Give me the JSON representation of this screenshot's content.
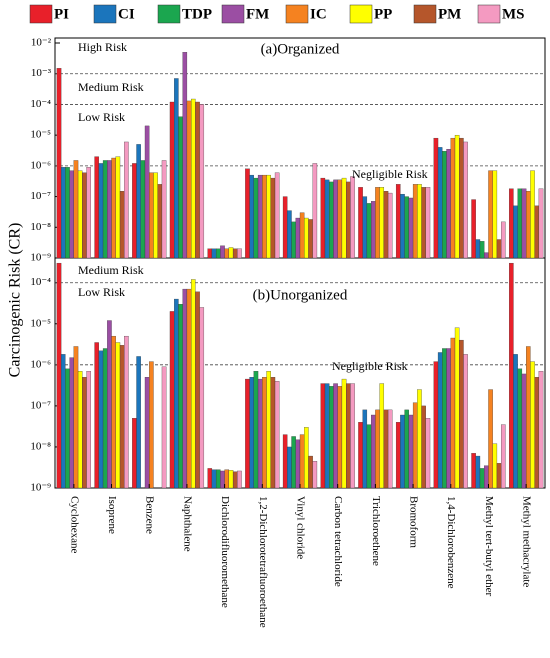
{
  "chart_data": [
    {
      "type": "bar",
      "title": "(a)Organized",
      "y_label": "Carcinogenic Risk (CR)",
      "log_scale": true,
      "categories": [
        "Cyclohexane",
        "Isoprene",
        "Benzene",
        "Naphthalene",
        "Dichlorodifluoromethane",
        "1,2-Dichlorotetrafluoroethane",
        "Vinyl chloride",
        "Carbon tetrachloride",
        "Trichloroethene",
        "Bromoform",
        "1,4-Dichlorobenzene",
        "Methyl tert-butyl ether",
        "Methyl methacrylate"
      ],
      "ylim": [
        1e-09,
        0.01
      ],
      "yticks": [
        {
          "value": 1e-09,
          "label": "10⁻⁹"
        },
        {
          "value": 1e-08,
          "label": "10⁻⁸"
        },
        {
          "value": 1e-07,
          "label": "10⁻⁷"
        },
        {
          "value": 1e-06,
          "label": "10⁻⁶"
        },
        {
          "value": 1e-05,
          "label": "10⁻⁵"
        },
        {
          "value": 0.0001,
          "label": "10⁻⁴"
        },
        {
          "value": 0.001,
          "label": "10⁻³"
        },
        {
          "value": 0.01,
          "label": "10⁻²"
        }
      ],
      "risk_lines": [
        0.001,
        0.0001,
        1e-06
      ],
      "annotations": [
        "High Risk",
        "Medium Risk",
        "Low Risk",
        "Negligible Risk"
      ],
      "series": [
        {
          "name": "PI",
          "color": "#e8202a",
          "values": [
            0.0015,
            2e-06,
            1.2e-06,
            0.00012,
            2e-09,
            8e-07,
            1e-07,
            4e-07,
            2e-07,
            2.5e-07,
            8e-06,
            8e-08,
            1.8e-07
          ]
        },
        {
          "name": "CI",
          "color": "#1b75bc",
          "values": [
            9e-07,
            1.2e-06,
            5e-06,
            0.0007,
            2e-09,
            5e-07,
            3.5e-08,
            3.5e-07,
            1e-07,
            1.2e-07,
            4e-06,
            4e-09,
            5e-08
          ]
        },
        {
          "name": "TDP",
          "color": "#1ba64f",
          "values": [
            9e-07,
            1.5e-06,
            1.5e-06,
            4e-05,
            2e-09,
            4e-07,
            1.5e-08,
            3e-07,
            6e-08,
            1e-07,
            3e-06,
            3.5e-09,
            1.8e-07
          ]
        },
        {
          "name": "FM",
          "color": "#9b4ea3",
          "values": [
            7e-07,
            1.5e-06,
            2e-05,
            0.005,
            2.5e-09,
            5e-07,
            2e-08,
            3.5e-07,
            7e-08,
            9e-08,
            3.5e-06,
            1.5e-09,
            1.8e-07
          ]
        },
        {
          "name": "IC",
          "color": "#f58220",
          "values": [
            1.5e-06,
            1.8e-06,
            6e-07,
            0.00013,
            2e-09,
            5e-07,
            3e-08,
            3.5e-07,
            2e-07,
            2.5e-07,
            8e-06,
            7e-07,
            1.5e-07
          ]
        },
        {
          "name": "PP",
          "color": "#ffff00",
          "values": [
            7e-07,
            2e-06,
            6e-07,
            0.00015,
            2.2e-09,
            5e-07,
            2e-08,
            4e-07,
            2e-07,
            2.5e-07,
            1e-05,
            7e-07,
            7e-07
          ]
        },
        {
          "name": "PM",
          "color": "#b5562b",
          "values": [
            6e-07,
            1.5e-07,
            2.5e-07,
            0.00012,
            2e-09,
            4e-07,
            1.8e-08,
            3e-07,
            1.5e-07,
            2e-07,
            8e-06,
            4e-09,
            5e-08
          ]
        },
        {
          "name": "MS",
          "color": "#f49ac1",
          "values": [
            9e-07,
            6e-06,
            1.5e-06,
            0.0001,
            2e-09,
            6e-07,
            1.2e-06,
            4.5e-07,
            1.3e-07,
            2e-07,
            6e-06,
            1.5e-08,
            1.8e-07
          ]
        }
      ]
    },
    {
      "type": "bar",
      "title": "(b)Unorganized",
      "log_scale": true,
      "categories": [
        "Cyclohexane",
        "Isoprene",
        "Benzene",
        "Naphthalene",
        "Dichlorodifluoromethane",
        "1,2-Dichlorotetrafluoroethane",
        "Vinyl chloride",
        "Carbon tetrachloride",
        "Trichloroethene",
        "Bromoform",
        "1,4-Dichlorobenzene",
        "Methyl tert-butyl ether",
        "Methyl methacrylate"
      ],
      "ylim": [
        1e-09,
        0.0004
      ],
      "yticks": [
        {
          "value": 1e-09,
          "label": "10⁻⁹"
        },
        {
          "value": 1e-08,
          "label": "10⁻⁸"
        },
        {
          "value": 1e-07,
          "label": "10⁻⁷"
        },
        {
          "value": 1e-06,
          "label": "10⁻⁶"
        },
        {
          "value": 1e-05,
          "label": "10⁻⁵"
        },
        {
          "value": 0.0001,
          "label": "10⁻⁴"
        }
      ],
      "risk_lines": [
        0.0001,
        1e-06
      ],
      "annotations": [
        "Medium Risk",
        "Low Risk",
        "Negligible Risk"
      ],
      "series": [
        {
          "name": "PI",
          "color": "#e8202a",
          "values": [
            0.0003,
            3.5e-06,
            5e-08,
            2e-05,
            3e-09,
            4.5e-07,
            2e-08,
            3.5e-07,
            4e-08,
            4e-08,
            1.2e-06,
            7e-09,
            0.0003
          ]
        },
        {
          "name": "CI",
          "color": "#1b75bc",
          "values": [
            1.8e-06,
            2.2e-06,
            1.6e-06,
            4e-05,
            2.8e-09,
            5e-07,
            1e-08,
            3.5e-07,
            8e-08,
            6e-08,
            2e-06,
            6e-09,
            1.8e-06
          ]
        },
        {
          "name": "TDP",
          "color": "#1ba64f",
          "values": [
            8e-07,
            2.5e-06,
            null,
            3e-05,
            2.8e-09,
            7e-07,
            1.8e-08,
            3e-07,
            3.5e-08,
            8e-08,
            2.5e-06,
            3e-09,
            8e-07
          ]
        },
        {
          "name": "FM",
          "color": "#9b4ea3",
          "values": [
            1.5e-06,
            1.2e-05,
            5e-07,
            7e-05,
            2.6e-09,
            4.5e-07,
            1.5e-08,
            3.5e-07,
            6e-08,
            6e-08,
            2.5e-06,
            3.5e-09,
            6e-07
          ]
        },
        {
          "name": "IC",
          "color": "#f58220",
          "values": [
            2.8e-06,
            5e-06,
            1.2e-06,
            7e-05,
            2.8e-09,
            5e-07,
            2e-08,
            3e-07,
            8e-08,
            1.2e-07,
            4.5e-06,
            2.5e-07,
            2.8e-06
          ]
        },
        {
          "name": "PP",
          "color": "#ffff00",
          "values": [
            7e-07,
            3.5e-06,
            null,
            0.00012,
            2.7e-09,
            7e-07,
            3e-08,
            4.5e-07,
            3.5e-07,
            2.5e-07,
            8e-06,
            1.2e-08,
            1.2e-06
          ]
        },
        {
          "name": "PM",
          "color": "#b5562b",
          "values": [
            5e-07,
            3e-06,
            null,
            6e-05,
            2.5e-09,
            5e-07,
            6e-09,
            3.5e-07,
            8e-08,
            1e-07,
            4e-06,
            4e-09,
            5e-07
          ]
        },
        {
          "name": "MS",
          "color": "#f49ac1",
          "values": [
            7e-07,
            5e-06,
            9e-07,
            2.5e-05,
            2.6e-09,
            4e-07,
            4.5e-09,
            3.5e-07,
            8e-08,
            5e-08,
            1.8e-06,
            3.5e-08,
            7e-07
          ]
        }
      ]
    }
  ]
}
